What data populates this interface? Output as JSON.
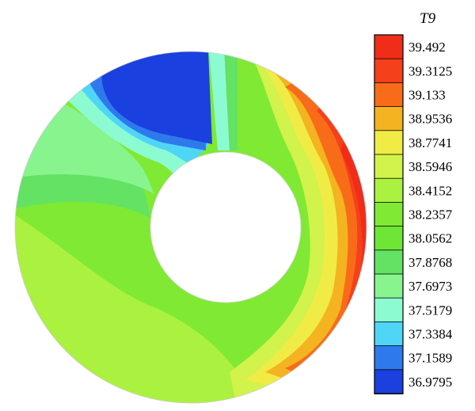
{
  "chart_data": {
    "type": "heatmap",
    "subtype": "annular-contour",
    "legend": {
      "title": "T9",
      "placement": "right",
      "levels": [
        "39.492",
        "39.3125",
        "39.133",
        "38.9536",
        "38.7741",
        "38.5946",
        "38.4152",
        "38.2357",
        "38.0562",
        "37.8768",
        "37.6973",
        "37.5179",
        "37.3384",
        "37.1589",
        "36.9795"
      ],
      "colors": [
        "#f02d19",
        "#f6401b",
        "#f86c19",
        "#f4b321",
        "#f0ec45",
        "#d2f24c",
        "#aaf140",
        "#80e934",
        "#6ee636",
        "#63e264",
        "#88f48e",
        "#8dfbd2",
        "#4fd6f7",
        "#2e79ec",
        "#1a40df"
      ]
    },
    "field": {
      "variable": "T9",
      "hot_region": "right side of annulus",
      "cold_region": "upper-left of annulus near top"
    }
  }
}
